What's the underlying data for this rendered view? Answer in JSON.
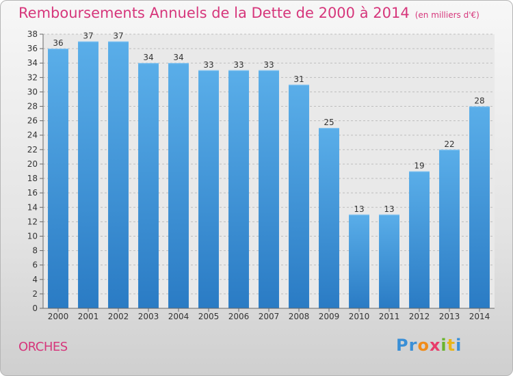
{
  "chart_data": {
    "type": "bar",
    "title": "Remboursements Annuels de la Dette de 2000 à 2014",
    "subtitle": "(en milliers d'€)",
    "categories": [
      "2000",
      "2001",
      "2002",
      "2003",
      "2004",
      "2005",
      "2006",
      "2007",
      "2008",
      "2009",
      "2010",
      "2011",
      "2012",
      "2013",
      "2014"
    ],
    "values": [
      36,
      37,
      37,
      34,
      34,
      33,
      33,
      33,
      31,
      25,
      13,
      13,
      19,
      22,
      28
    ],
    "ylim": [
      0,
      38
    ],
    "yticks": [
      0,
      2,
      4,
      6,
      8,
      10,
      12,
      14,
      16,
      18,
      20,
      22,
      24,
      26,
      28,
      30,
      32,
      34,
      36,
      38
    ],
    "xlabel": "",
    "ylabel": "",
    "grid": "horizontal dashed",
    "bar_color": "#4a9edf"
  },
  "footer": {
    "commune": "ORCHES",
    "logo_letters": [
      "P",
      "r",
      "o",
      "x",
      "i",
      "t",
      "i"
    ],
    "logo_colors": [
      "#3a8fd6",
      "#3a8fd6",
      "#f08c1a",
      "#e83c6a",
      "#6ab42d",
      "#e8b51a",
      "#3a8fd6"
    ]
  }
}
